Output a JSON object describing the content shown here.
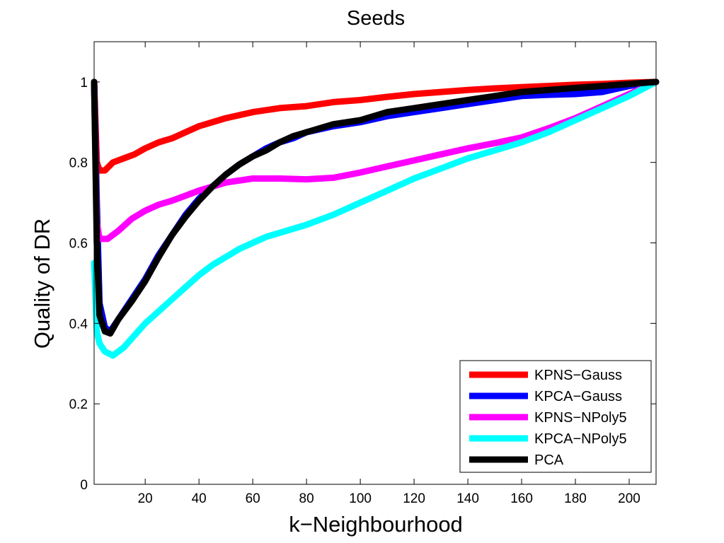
{
  "chart_data": {
    "type": "line",
    "title": "Seeds",
    "xlabel": "k−Neighbourhood",
    "ylabel": "Quality of DR",
    "xlim": [
      1,
      210
    ],
    "ylim": [
      0,
      1.1
    ],
    "xticks": [
      20,
      40,
      60,
      80,
      100,
      120,
      140,
      160,
      180,
      200
    ],
    "xtick_labels": [
      "20",
      "40",
      "60",
      "80",
      "100",
      "120",
      "140",
      "160",
      "180",
      "200"
    ],
    "yticks": [
      0,
      0.2,
      0.4,
      0.6,
      0.8,
      1
    ],
    "ytick_labels": [
      "0",
      "0.2",
      "0.4",
      "0.6",
      "0.8",
      "1"
    ],
    "grid": false,
    "legend_position": "bottom-right",
    "series": [
      {
        "name": "KPNS−Gauss",
        "color": "#ff0000",
        "points": [
          [
            1,
            1.0
          ],
          [
            2,
            0.8
          ],
          [
            3,
            0.78
          ],
          [
            5,
            0.78
          ],
          [
            8,
            0.8
          ],
          [
            12,
            0.81
          ],
          [
            16,
            0.82
          ],
          [
            20,
            0.835
          ],
          [
            25,
            0.85
          ],
          [
            30,
            0.86
          ],
          [
            35,
            0.875
          ],
          [
            40,
            0.89
          ],
          [
            45,
            0.9
          ],
          [
            50,
            0.91
          ],
          [
            60,
            0.925
          ],
          [
            70,
            0.935
          ],
          [
            80,
            0.94
          ],
          [
            90,
            0.95
          ],
          [
            100,
            0.955
          ],
          [
            110,
            0.963
          ],
          [
            120,
            0.97
          ],
          [
            130,
            0.975
          ],
          [
            140,
            0.98
          ],
          [
            150,
            0.984
          ],
          [
            160,
            0.987
          ],
          [
            170,
            0.99
          ],
          [
            180,
            0.993
          ],
          [
            190,
            0.995
          ],
          [
            200,
            0.998
          ],
          [
            210,
            1.0
          ]
        ]
      },
      {
        "name": "KPCA−Gauss",
        "color": "#0000ff",
        "points": [
          [
            1,
            1.0
          ],
          [
            2,
            0.7
          ],
          [
            3,
            0.45
          ],
          [
            5,
            0.39
          ],
          [
            7,
            0.38
          ],
          [
            10,
            0.41
          ],
          [
            15,
            0.46
          ],
          [
            20,
            0.51
          ],
          [
            25,
            0.57
          ],
          [
            30,
            0.62
          ],
          [
            35,
            0.67
          ],
          [
            40,
            0.71
          ],
          [
            45,
            0.74
          ],
          [
            50,
            0.77
          ],
          [
            55,
            0.795
          ],
          [
            60,
            0.815
          ],
          [
            65,
            0.835
          ],
          [
            70,
            0.85
          ],
          [
            75,
            0.86
          ],
          [
            80,
            0.875
          ],
          [
            90,
            0.89
          ],
          [
            100,
            0.9
          ],
          [
            110,
            0.915
          ],
          [
            120,
            0.925
          ],
          [
            130,
            0.935
          ],
          [
            140,
            0.945
          ],
          [
            150,
            0.955
          ],
          [
            160,
            0.965
          ],
          [
            170,
            0.968
          ],
          [
            180,
            0.97
          ],
          [
            190,
            0.975
          ],
          [
            200,
            0.99
          ],
          [
            210,
            1.0
          ]
        ]
      },
      {
        "name": "KPNS−NPoly5",
        "color": "#ff00ff",
        "points": [
          [
            1,
            1.0
          ],
          [
            2,
            0.65
          ],
          [
            3,
            0.61
          ],
          [
            6,
            0.61
          ],
          [
            10,
            0.63
          ],
          [
            15,
            0.66
          ],
          [
            20,
            0.68
          ],
          [
            25,
            0.695
          ],
          [
            30,
            0.705
          ],
          [
            40,
            0.73
          ],
          [
            50,
            0.75
          ],
          [
            60,
            0.76
          ],
          [
            70,
            0.76
          ],
          [
            80,
            0.758
          ],
          [
            90,
            0.762
          ],
          [
            100,
            0.775
          ],
          [
            110,
            0.79
          ],
          [
            120,
            0.805
          ],
          [
            130,
            0.82
          ],
          [
            140,
            0.835
          ],
          [
            150,
            0.848
          ],
          [
            160,
            0.862
          ],
          [
            170,
            0.885
          ],
          [
            180,
            0.91
          ],
          [
            190,
            0.94
          ],
          [
            200,
            0.97
          ],
          [
            210,
            1.0
          ]
        ]
      },
      {
        "name": "KPCA−NPoly5",
        "color": "#00ffff",
        "points": [
          [
            1,
            0.55
          ],
          [
            2,
            0.38
          ],
          [
            3,
            0.35
          ],
          [
            5,
            0.33
          ],
          [
            8,
            0.32
          ],
          [
            12,
            0.34
          ],
          [
            16,
            0.37
          ],
          [
            20,
            0.4
          ],
          [
            25,
            0.43
          ],
          [
            30,
            0.46
          ],
          [
            35,
            0.49
          ],
          [
            40,
            0.52
          ],
          [
            45,
            0.545
          ],
          [
            50,
            0.565
          ],
          [
            55,
            0.585
          ],
          [
            60,
            0.6
          ],
          [
            65,
            0.615
          ],
          [
            70,
            0.625
          ],
          [
            80,
            0.645
          ],
          [
            90,
            0.67
          ],
          [
            100,
            0.7
          ],
          [
            110,
            0.73
          ],
          [
            120,
            0.76
          ],
          [
            130,
            0.785
          ],
          [
            140,
            0.81
          ],
          [
            150,
            0.83
          ],
          [
            160,
            0.85
          ],
          [
            170,
            0.875
          ],
          [
            180,
            0.905
          ],
          [
            190,
            0.935
          ],
          [
            200,
            0.965
          ],
          [
            210,
            1.0
          ]
        ]
      },
      {
        "name": "PCA",
        "color": "#000000",
        "points": [
          [
            1,
            1.0
          ],
          [
            2,
            0.6
          ],
          [
            3,
            0.42
          ],
          [
            5,
            0.38
          ],
          [
            7,
            0.375
          ],
          [
            10,
            0.41
          ],
          [
            15,
            0.455
          ],
          [
            20,
            0.505
          ],
          [
            25,
            0.565
          ],
          [
            30,
            0.62
          ],
          [
            35,
            0.665
          ],
          [
            40,
            0.705
          ],
          [
            45,
            0.74
          ],
          [
            50,
            0.77
          ],
          [
            55,
            0.795
          ],
          [
            60,
            0.815
          ],
          [
            65,
            0.83
          ],
          [
            70,
            0.85
          ],
          [
            75,
            0.865
          ],
          [
            80,
            0.875
          ],
          [
            90,
            0.895
          ],
          [
            100,
            0.905
          ],
          [
            110,
            0.925
          ],
          [
            120,
            0.935
          ],
          [
            130,
            0.945
          ],
          [
            140,
            0.955
          ],
          [
            150,
            0.965
          ],
          [
            160,
            0.975
          ],
          [
            170,
            0.98
          ],
          [
            180,
            0.985
          ],
          [
            190,
            0.99
          ],
          [
            200,
            0.995
          ],
          [
            210,
            1.0
          ]
        ]
      }
    ]
  }
}
